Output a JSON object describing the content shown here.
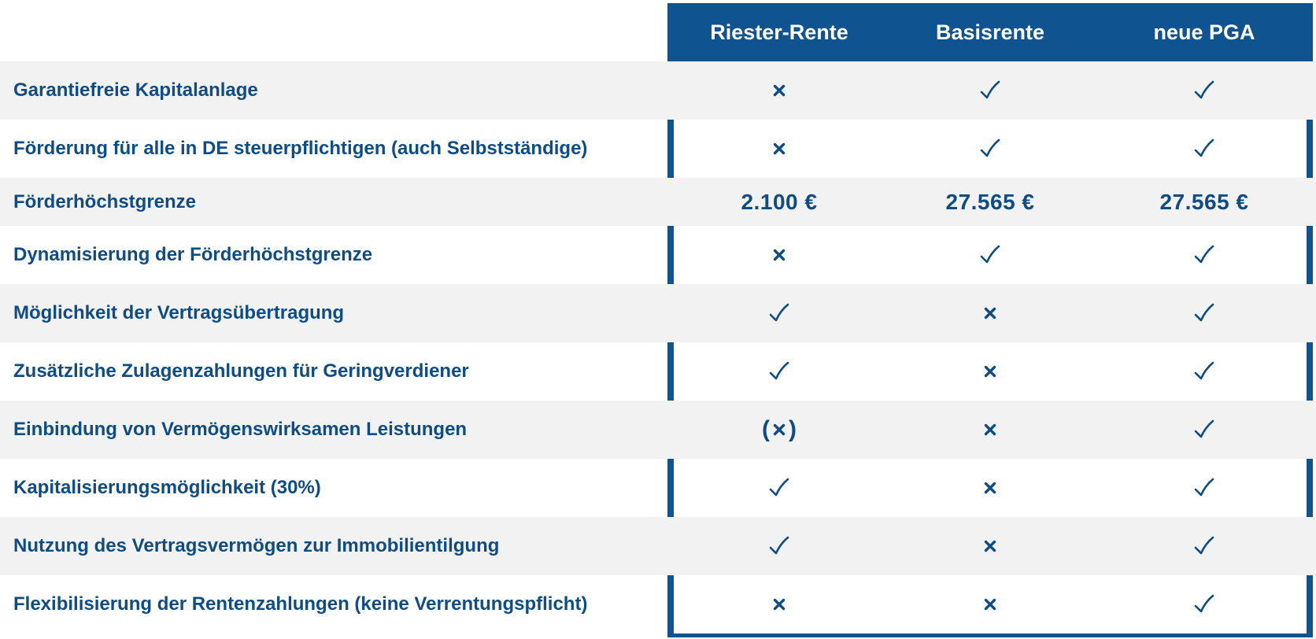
{
  "columns": [
    "Riester-Rente",
    "Basisrente",
    "neue PGA"
  ],
  "colors": {
    "primary": "#0f5390",
    "text": "#0f4c84",
    "shade": "#f2f2f2"
  },
  "rows": [
    {
      "label": "Garantiefreie Kapitalanlage",
      "values": [
        "cross",
        "check",
        "check"
      ]
    },
    {
      "label": "Förderung für alle in DE steuerpflichtigen (auch Selbstständige)",
      "values": [
        "cross",
        "check",
        "check"
      ]
    },
    {
      "label": "Förderhöchstgrenze",
      "values": [
        "2.100 €",
        "27.565 €",
        "27.565 €"
      ]
    },
    {
      "label": "Dynamisierung der Förderhöchstgrenze",
      "values": [
        "cross",
        "check",
        "check"
      ]
    },
    {
      "label": "Möglichkeit der Vertragsübertragung",
      "values": [
        "check",
        "cross",
        "check"
      ]
    },
    {
      "label": "Zusätzliche Zulagenzahlungen für Geringverdiener",
      "values": [
        "check",
        "cross",
        "check"
      ]
    },
    {
      "label": "Einbindung von Vermögenswirksamen Leistungen",
      "values": [
        "(cross)",
        "cross",
        "check"
      ]
    },
    {
      "label": "Kapitalisierungsmöglichkeit (30%)",
      "values": [
        "check",
        "cross",
        "check"
      ]
    },
    {
      "label": "Nutzung des Vertragsvermögen zur Immobilientilgung",
      "values": [
        "check",
        "cross",
        "check"
      ]
    },
    {
      "label": "Flexibilisierung der Rentenzahlungen (keine Verrentungspflicht)",
      "values": [
        "cross",
        "cross",
        "check"
      ]
    }
  ]
}
